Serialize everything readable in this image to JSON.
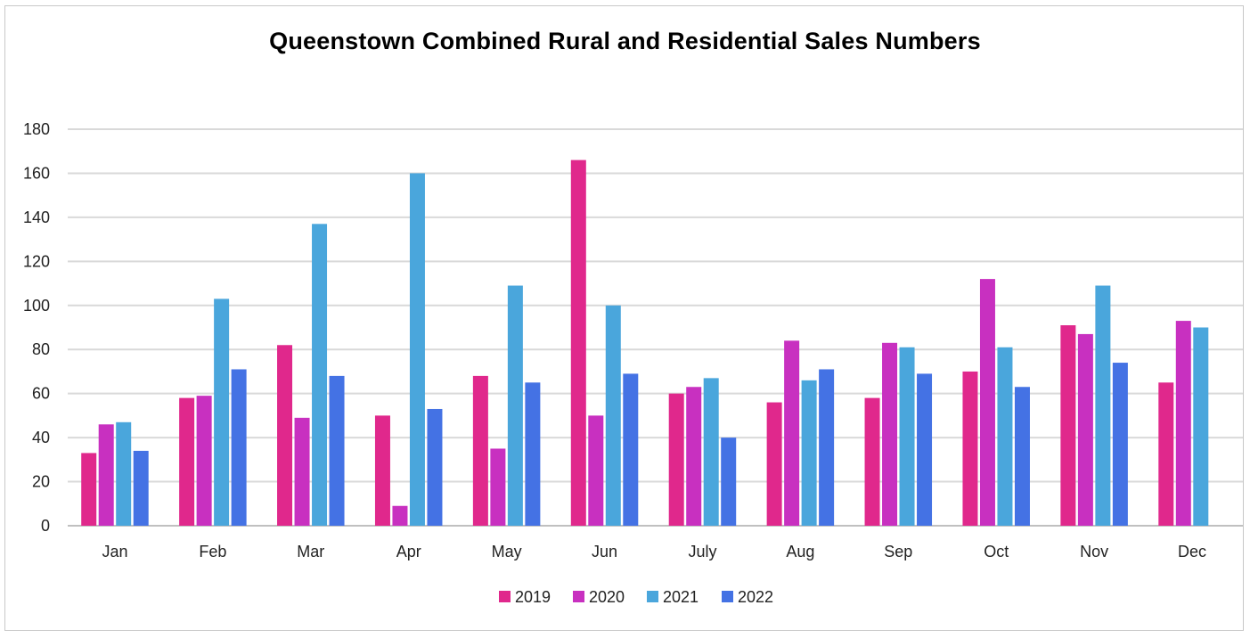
{
  "chart_data": {
    "type": "bar",
    "title": "Queenstown Combined Rural and Residential Sales Numbers",
    "xlabel": "",
    "ylabel": "",
    "ylim": [
      0,
      180
    ],
    "yticks": [
      0,
      20,
      40,
      60,
      80,
      100,
      120,
      140,
      160,
      180
    ],
    "grid": true,
    "legend_position": "bottom",
    "categories": [
      "Jan",
      "Feb",
      "Mar",
      "Apr",
      "May",
      "Jun",
      "July",
      "Aug",
      "Sep",
      "Oct",
      "Nov",
      "Dec"
    ],
    "series": [
      {
        "name": "2019",
        "color": "#e0288c",
        "values": [
          33,
          58,
          82,
          50,
          68,
          166,
          60,
          56,
          58,
          70,
          91,
          65
        ]
      },
      {
        "name": "2020",
        "color": "#c830c0",
        "values": [
          46,
          59,
          49,
          9,
          35,
          50,
          63,
          84,
          83,
          112,
          87,
          93
        ]
      },
      {
        "name": "2021",
        "color": "#4aa6dc",
        "values": [
          47,
          103,
          137,
          160,
          109,
          100,
          67,
          66,
          81,
          81,
          109,
          90
        ]
      },
      {
        "name": "2022",
        "color": "#4472e4",
        "values": [
          34,
          71,
          68,
          53,
          65,
          69,
          40,
          71,
          69,
          63,
          74,
          null
        ]
      }
    ]
  }
}
